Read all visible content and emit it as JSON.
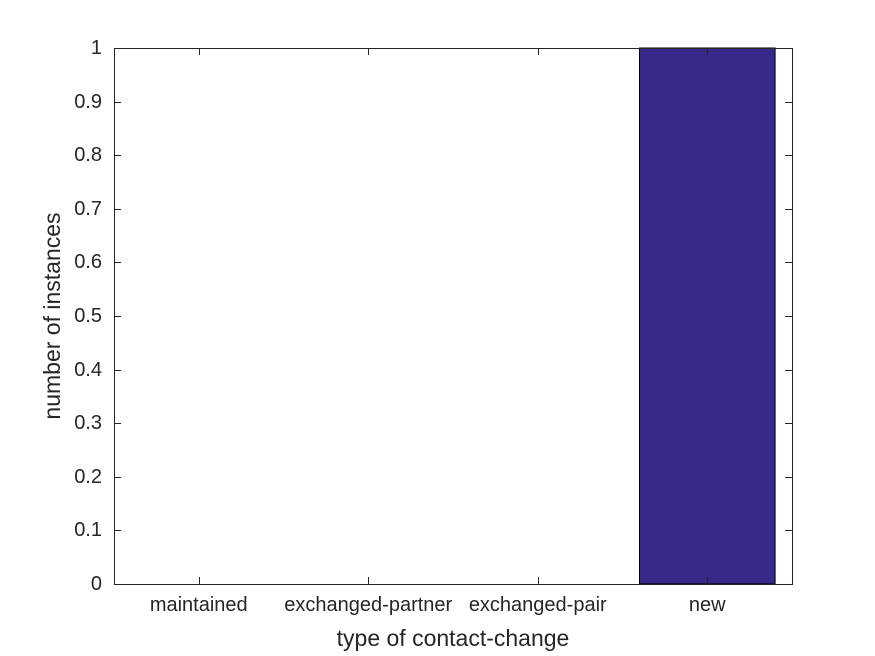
{
  "chart_data": {
    "type": "bar",
    "title": "",
    "xlabel": "type of contact-change",
    "ylabel": "number of instances",
    "categories": [
      "maintained",
      "exchanged-partner",
      "exchanged-pair",
      "new"
    ],
    "values": [
      0,
      0,
      0,
      1
    ],
    "ylim": [
      0,
      1
    ],
    "yticks": [
      0,
      0.1,
      0.2,
      0.3,
      0.4,
      0.5,
      0.6,
      0.7,
      0.8,
      0.9,
      1
    ],
    "ytick_labels": [
      "0",
      "0.1",
      "0.2",
      "0.3",
      "0.4",
      "0.5",
      "0.6",
      "0.7",
      "0.8",
      "0.9",
      "1"
    ],
    "bar_width_fraction": 0.8,
    "bar_color": "#352A87",
    "bar_edge_color": "#000000",
    "axis_color": "#262626",
    "text_color": "#262626",
    "background": "#FFFFFF",
    "grid": false,
    "legend": null,
    "tick_direction": "in",
    "box": true
  }
}
